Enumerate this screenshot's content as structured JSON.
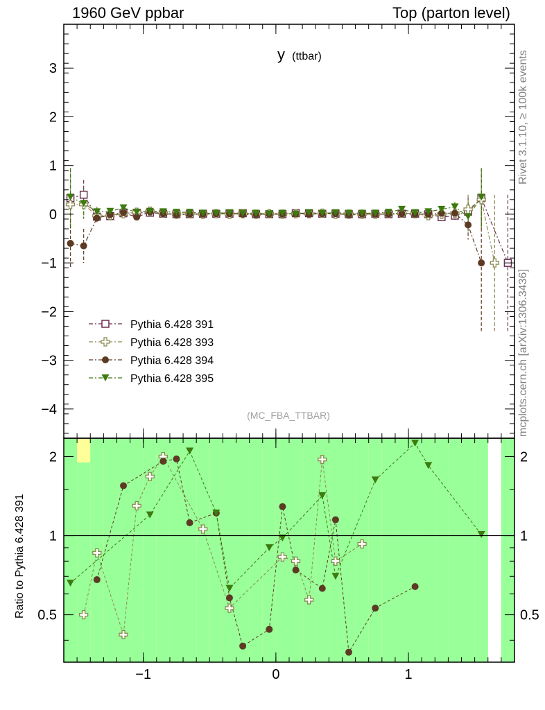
{
  "header": {
    "left": "1960 GeV ppbar",
    "right": "Top (parton level)"
  },
  "side_text": {
    "rivet": "Rivet 3.1.10, ≥ 100k events",
    "mcplots": "mcplots.cern.ch [arXiv:1306.3436]"
  },
  "plot_title": {
    "main": "y",
    "sub": "(ttbar)"
  },
  "analysis_tag": "(MC_FBA_TTBAR)",
  "ratio_ylabel": "Ratio to Pythia 6.428 391",
  "chart_data": [
    {
      "type": "scatter",
      "panel": "main",
      "x_ticks": [
        "−1",
        "0",
        "1"
      ],
      "y_ticks": [
        "−4",
        "−3",
        "−2",
        "−1",
        "0",
        "1",
        "2",
        "3"
      ],
      "xlim": [
        -1.6,
        1.8
      ],
      "ylim": [
        -4.6,
        3.9
      ],
      "legend_position": "middle-left",
      "series": [
        {
          "name": "Pythia 6.428 391",
          "color": "#6b2f4f",
          "marker": "open-square",
          "x": [
            -1.55,
            -1.45,
            -1.35,
            -1.25,
            -1.15,
            -1.05,
            -0.95,
            -0.85,
            -0.75,
            -0.65,
            -0.55,
            -0.45,
            -0.35,
            -0.25,
            -0.15,
            -0.05,
            0.05,
            0.15,
            0.25,
            0.35,
            0.45,
            0.55,
            0.65,
            0.75,
            0.85,
            0.95,
            1.05,
            1.15,
            1.25,
            1.35,
            1.45,
            1.55,
            1.65,
            1.75
          ],
          "y": [
            0.33,
            0.4,
            -0.05,
            -0.04,
            0.02,
            0.03,
            0.03,
            0.01,
            0.0,
            0.0,
            0.01,
            0.01,
            0.01,
            0.02,
            0.0,
            0.0,
            0.0,
            0.02,
            0.02,
            0.01,
            0.01,
            0.0,
            0.0,
            0.01,
            0.0,
            0.01,
            0.01,
            0.0,
            -0.06,
            -0.03,
            0.05,
            0.33,
            null,
            -1.0
          ],
          "err": [
            0.6,
            0.3,
            0.1,
            0.05,
            0.04,
            0.03,
            0.03,
            0.02,
            0.02,
            0.02,
            0.02,
            0.02,
            0.02,
            0.02,
            0.02,
            0.02,
            0.02,
            0.02,
            0.02,
            0.02,
            0.02,
            0.02,
            0.02,
            0.02,
            0.02,
            0.02,
            0.03,
            0.04,
            0.06,
            0.1,
            0.3,
            0.6,
            0,
            1.4
          ]
        },
        {
          "name": "Pythia 6.428 393",
          "color": "#8a8a50",
          "marker": "open-cross",
          "x": [
            -1.55,
            -1.45,
            -1.35,
            -1.25,
            -1.15,
            -1.05,
            -0.95,
            -0.85,
            -0.75,
            -0.65,
            -0.55,
            -0.45,
            -0.35,
            -0.25,
            -0.15,
            -0.05,
            0.05,
            0.15,
            0.25,
            0.35,
            0.45,
            0.55,
            0.65,
            0.75,
            0.85,
            0.95,
            1.05,
            1.15,
            1.25,
            1.35,
            1.45,
            1.55,
            1.65,
            1.75
          ],
          "y": [
            0.2,
            0.2,
            -0.03,
            -0.02,
            0.01,
            0.04,
            0.06,
            0.02,
            0.0,
            0.01,
            0.0,
            0.01,
            0.0,
            0.01,
            0.0,
            0.01,
            0.0,
            0.01,
            0.01,
            0.02,
            0.0,
            0.0,
            0.0,
            0.0,
            0.01,
            0.02,
            0.01,
            -0.03,
            0.0,
            0.02,
            0.1,
            0.3,
            -1.0,
            null
          ],
          "err": [
            0.6,
            0.3,
            0.1,
            0.05,
            0.04,
            0.03,
            0.03,
            0.02,
            0.02,
            0.02,
            0.02,
            0.02,
            0.02,
            0.02,
            0.02,
            0.02,
            0.02,
            0.02,
            0.02,
            0.02,
            0.02,
            0.02,
            0.02,
            0.02,
            0.02,
            0.02,
            0.03,
            0.04,
            0.06,
            0.1,
            0.3,
            0.6,
            1.4,
            0
          ]
        },
        {
          "name": "Pythia 6.428 394",
          "color": "#5c3a24",
          "marker": "filled-circle",
          "x": [
            -1.55,
            -1.45,
            -1.35,
            -1.25,
            -1.15,
            -1.05,
            -0.95,
            -0.85,
            -0.75,
            -0.65,
            -0.55,
            -0.45,
            -0.35,
            -0.25,
            -0.15,
            -0.05,
            0.05,
            0.15,
            0.25,
            0.35,
            0.45,
            0.55,
            0.65,
            0.75,
            0.85,
            0.95,
            1.05,
            1.15,
            1.25,
            1.35,
            1.45,
            1.55
          ],
          "y": [
            -0.6,
            -0.65,
            -0.08,
            -0.01,
            0.03,
            -0.06,
            0.05,
            0.01,
            -0.01,
            0.0,
            0.0,
            0.01,
            0.01,
            0.0,
            -0.01,
            0.0,
            0.0,
            0.01,
            0.0,
            0.01,
            0.01,
            -0.01,
            0.0,
            0.0,
            0.0,
            0.01,
            0.0,
            0.0,
            0.02,
            0.02,
            -0.22,
            -1.0
          ],
          "err": [
            0.5,
            0.35,
            0.1,
            0.05,
            0.04,
            0.03,
            0.03,
            0.02,
            0.02,
            0.02,
            0.02,
            0.02,
            0.02,
            0.02,
            0.02,
            0.02,
            0.02,
            0.02,
            0.02,
            0.02,
            0.02,
            0.02,
            0.02,
            0.02,
            0.02,
            0.02,
            0.03,
            0.04,
            0.06,
            0.1,
            0.3,
            1.4
          ]
        },
        {
          "name": "Pythia 6.428 395",
          "color": "#3d7a0f",
          "marker": "filled-down-triangle",
          "x": [
            -1.55,
            -1.45,
            -1.35,
            -1.25,
            -1.15,
            -1.05,
            -0.95,
            -0.85,
            -0.75,
            -0.65,
            -0.55,
            -0.45,
            -0.35,
            -0.25,
            -0.15,
            -0.05,
            0.05,
            0.15,
            0.25,
            0.35,
            0.45,
            0.55,
            0.65,
            0.75,
            0.85,
            0.95,
            1.05,
            1.15,
            1.25,
            1.35,
            1.45,
            1.55
          ],
          "y": [
            0.35,
            0.22,
            0.05,
            0.06,
            0.13,
            0.04,
            0.06,
            0.05,
            0.04,
            0.04,
            0.02,
            0.02,
            0.03,
            0.02,
            0.02,
            0.01,
            0.02,
            0.0,
            0.03,
            0.02,
            0.03,
            0.02,
            0.02,
            0.02,
            0.04,
            0.1,
            0.03,
            0.05,
            0.1,
            0.15,
            -0.05,
            0.35
          ],
          "err": [
            0.6,
            0.3,
            0.1,
            0.05,
            0.04,
            0.03,
            0.03,
            0.02,
            0.02,
            0.02,
            0.02,
            0.02,
            0.02,
            0.02,
            0.02,
            0.02,
            0.02,
            0.02,
            0.02,
            0.02,
            0.02,
            0.02,
            0.02,
            0.02,
            0.02,
            0.02,
            0.03,
            0.04,
            0.06,
            0.1,
            0.3,
            0.6
          ]
        }
      ]
    },
    {
      "type": "scatter",
      "panel": "ratio",
      "ylabel": "Ratio to Pythia 6.428 391",
      "x_ticks": [
        "−1",
        "0",
        "1"
      ],
      "y_ticks_left": [
        "0.5",
        "1",
        "2"
      ],
      "y_ticks_right": [
        "0.5",
        "1",
        "2"
      ],
      "xlim": [
        -1.6,
        1.8
      ],
      "ylim": [
        0.33,
        2.35
      ],
      "scale": "log",
      "reference_line": 1.0,
      "band_colors": {
        "inner": "#99ff99",
        "outer": "#ffff99"
      },
      "band_x": [
        -1.55,
        -1.45,
        -1.35,
        -1.25,
        -1.15,
        -1.05,
        -0.95,
        -0.85,
        -0.75,
        -0.65,
        -0.55,
        -0.45,
        -0.35,
        -0.25,
        -0.15,
        -0.05,
        0.05,
        0.15,
        0.25,
        0.35,
        0.45,
        0.55,
        0.65,
        0.75,
        0.85,
        0.95,
        1.05,
        1.15,
        1.25,
        1.35,
        1.45,
        1.55,
        1.75
      ],
      "band_inner_lo": [
        0.33,
        0.33,
        0.33,
        0.33,
        0.33,
        0.33,
        0.33,
        0.33,
        0.33,
        0.33,
        0.33,
        0.33,
        0.33,
        0.33,
        0.33,
        0.33,
        0.33,
        0.33,
        0.33,
        0.33,
        0.33,
        0.33,
        0.33,
        0.33,
        0.33,
        0.33,
        0.33,
        0.33,
        0.33,
        0.33,
        0.33,
        0.33,
        0.33
      ],
      "band_inner_hi": [
        2.35,
        1.9,
        2.35,
        2.35,
        2.35,
        2.35,
        2.35,
        2.35,
        2.35,
        2.35,
        2.35,
        2.35,
        2.35,
        2.35,
        2.35,
        2.35,
        2.35,
        2.35,
        2.35,
        2.35,
        2.35,
        2.35,
        2.35,
        2.35,
        2.35,
        2.35,
        2.35,
        2.35,
        2.35,
        2.35,
        2.35,
        2.35,
        2.35
      ],
      "band_outer_lo": [
        0.33,
        0.33,
        0.33,
        0.33,
        0.33,
        0.33,
        0.33,
        0.33,
        0.33,
        0.33,
        0.33,
        0.33,
        0.33,
        0.33,
        0.33,
        0.33,
        0.33,
        0.33,
        0.33,
        0.33,
        0.33,
        0.33,
        0.33,
        0.33,
        0.33,
        0.33,
        0.33,
        0.33,
        0.33,
        0.33,
        0.33,
        0.33,
        0.33
      ],
      "band_outer_hi": [
        2.35,
        2.35,
        2.35,
        2.35,
        2.35,
        2.35,
        2.35,
        2.35,
        2.35,
        2.35,
        2.35,
        2.35,
        2.35,
        2.35,
        2.35,
        2.35,
        2.35,
        2.35,
        2.35,
        2.35,
        2.35,
        2.35,
        2.35,
        2.35,
        2.35,
        2.35,
        2.35,
        2.35,
        2.35,
        2.35,
        2.35,
        2.35,
        2.35
      ],
      "series": [
        {
          "name": "Pythia 6.428 393",
          "color": "#8a8a50",
          "marker": "open-cross",
          "x": [
            -1.45,
            -1.35,
            -1.15,
            -1.05,
            -0.95,
            -0.85,
            -0.55,
            -0.35,
            -0.25,
            0.05,
            0.15,
            0.25,
            0.35,
            0.45,
            0.65
          ],
          "y": [
            0.5,
            0.86,
            0.42,
            1.3,
            1.68,
            2.0,
            1.06,
            0.53,
            0.32,
            0.83,
            0.8,
            0.57,
            1.95,
            0.8,
            0.93
          ]
        },
        {
          "name": "Pythia 6.428 394",
          "color": "#5c3a24",
          "marker": "filled-circle",
          "x": [
            -1.35,
            -1.15,
            -0.85,
            -0.75,
            -0.65,
            -0.45,
            -0.35,
            -0.25,
            -0.05,
            0.05,
            0.15,
            0.35,
            0.45,
            0.55,
            0.75,
            1.05
          ],
          "y": [
            0.68,
            1.55,
            1.92,
            1.96,
            1.12,
            1.22,
            0.58,
            0.38,
            0.44,
            1.29,
            0.74,
            0.63,
            1.15,
            0.36,
            0.53,
            0.64
          ]
        },
        {
          "name": "Pythia 6.428 395",
          "color": "#3d7a0f",
          "marker": "filled-down-triangle",
          "x": [
            -1.55,
            -0.95,
            -0.65,
            -0.45,
            -0.35,
            -0.05,
            0.05,
            0.35,
            0.45,
            0.75,
            1.05,
            1.15,
            1.55
          ],
          "y": [
            0.66,
            1.2,
            2.1,
            1.22,
            0.63,
            0.9,
            0.98,
            1.42,
            0.7,
            1.63,
            2.25,
            1.85,
            1.01
          ]
        }
      ]
    }
  ]
}
